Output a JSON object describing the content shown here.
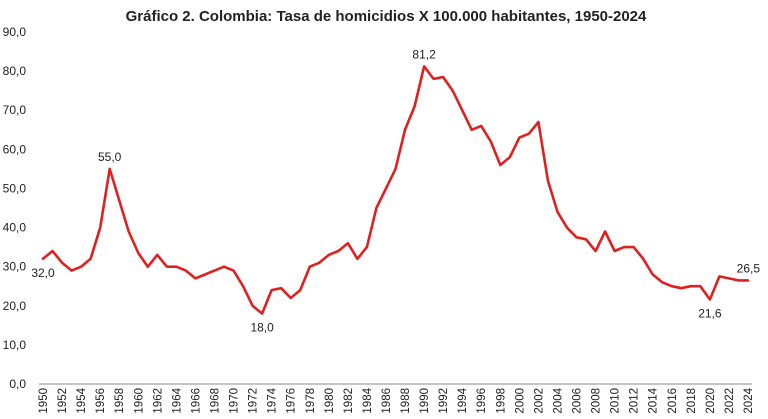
{
  "chart_data": {
    "type": "line",
    "title": "Gráfico 2. Colombia: Tasa de homicidios X 100.000 habitantes, 1950-2024",
    "xlabel": "",
    "ylabel": "",
    "ylim": [
      0,
      90
    ],
    "y_ticks": [
      "0,0",
      "10,0",
      "20,0",
      "30,0",
      "40,0",
      "50,0",
      "60,0",
      "70,0",
      "80,0",
      "90,0"
    ],
    "x_tick_labels": [
      "1950",
      "1952",
      "1954",
      "1956",
      "1958",
      "1960",
      "1962",
      "1964",
      "1966",
      "1968",
      "1970",
      "1972",
      "1974",
      "1976",
      "1978",
      "1980",
      "1982",
      "1984",
      "1986",
      "1988",
      "1990",
      "1992",
      "1994",
      "1996",
      "1998",
      "2000",
      "2002",
      "2004",
      "2006",
      "2008",
      "2010",
      "2012",
      "2014",
      "2016",
      "2018",
      "2020",
      "2022",
      "2024"
    ],
    "grid": false,
    "legend": "none",
    "line_color": "#e02020",
    "x": [
      1950,
      1951,
      1952,
      1953,
      1954,
      1955,
      1956,
      1957,
      1958,
      1959,
      1960,
      1961,
      1962,
      1963,
      1964,
      1965,
      1966,
      1967,
      1968,
      1969,
      1970,
      1971,
      1972,
      1973,
      1974,
      1975,
      1976,
      1977,
      1978,
      1979,
      1980,
      1981,
      1982,
      1983,
      1984,
      1985,
      1986,
      1987,
      1988,
      1989,
      1990,
      1991,
      1992,
      1993,
      1994,
      1995,
      1996,
      1997,
      1998,
      1999,
      2000,
      2001,
      2002,
      2003,
      2004,
      2005,
      2006,
      2007,
      2008,
      2009,
      2010,
      2011,
      2012,
      2013,
      2014,
      2015,
      2016,
      2017,
      2018,
      2019,
      2020,
      2021,
      2022,
      2023,
      2024
    ],
    "values": [
      32.0,
      34,
      31,
      29,
      30,
      32,
      40,
      55.0,
      47,
      39,
      33.5,
      30,
      33,
      30,
      30,
      29,
      27,
      28,
      29,
      30,
      29,
      25,
      20,
      18.0,
      24,
      24.5,
      22,
      24,
      30,
      31,
      33,
      34,
      36,
      32,
      35,
      45,
      50,
      55,
      65,
      71,
      81.2,
      78,
      78.5,
      75,
      70,
      65,
      66,
      62,
      56,
      58,
      63,
      64,
      67,
      52,
      44,
      40,
      37.5,
      37,
      34,
      39,
      34,
      35,
      35,
      32,
      28,
      26,
      25,
      24.5,
      25,
      25,
      21.6,
      27.5,
      27,
      26.5,
      26.5
    ],
    "data_labels": [
      {
        "year": 1950,
        "text": "32,0"
      },
      {
        "year": 1957,
        "text": "55,0"
      },
      {
        "year": 1973,
        "text": "18,0"
      },
      {
        "year": 1990,
        "text": "81,2"
      },
      {
        "year": 2020,
        "text": "21,6"
      },
      {
        "year": 2024,
        "text": "26,5"
      }
    ]
  }
}
